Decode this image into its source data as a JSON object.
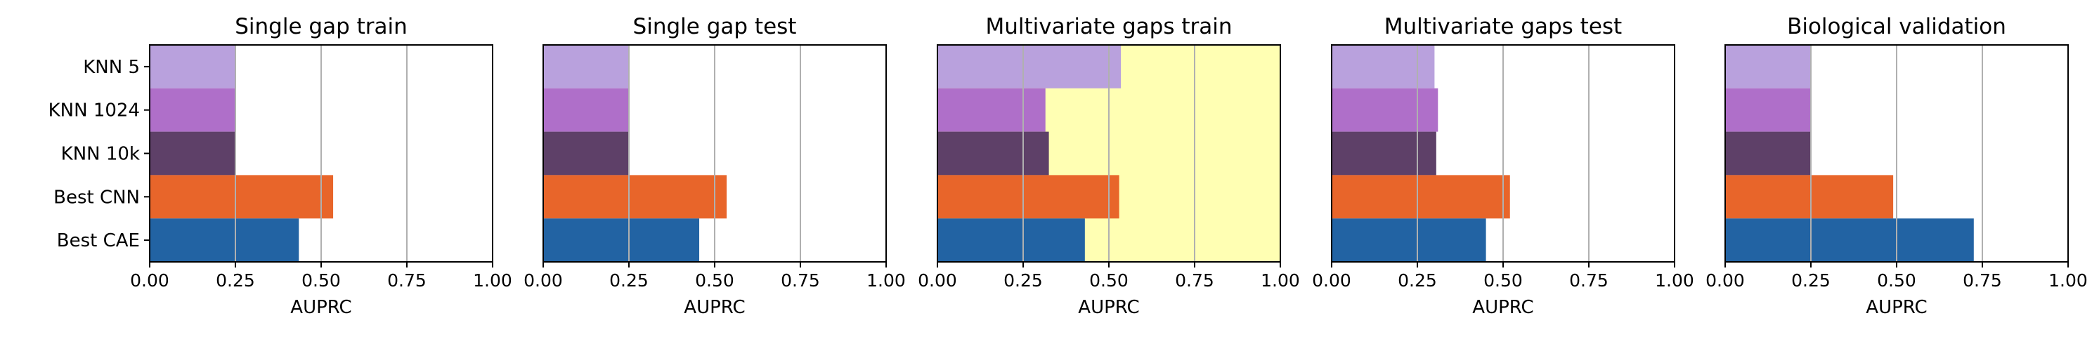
{
  "chart_data": {
    "type": "bar",
    "orientation": "horizontal",
    "categories": [
      "KNN 5",
      "KNN 1024",
      "KNN 10k",
      "Best CNN",
      "Best CAE"
    ],
    "category_colors": [
      "#b9a1dd",
      "#af6fc9",
      "#5e4068",
      "#e8652a",
      "#2263a3"
    ],
    "xlabel": "AUPRC",
    "xlim": [
      0,
      1
    ],
    "xticks": [
      "0.00",
      "0.25",
      "0.50",
      "0.75",
      "1.00"
    ],
    "grid": "vertical",
    "panels": [
      {
        "title": "Single gap train",
        "highlight": null,
        "values": [
          0.25,
          0.25,
          0.25,
          0.535,
          0.435
        ]
      },
      {
        "title": "Single gap test",
        "highlight": null,
        "values": [
          0.25,
          0.25,
          0.25,
          0.535,
          0.455
        ]
      },
      {
        "title": "Multivariate gaps train",
        "highlight": "#ffffb3",
        "values": [
          0.535,
          0.315,
          0.325,
          0.53,
          0.43
        ]
      },
      {
        "title": "Multivariate gaps test",
        "highlight": null,
        "values": [
          0.3,
          0.31,
          0.305,
          0.52,
          0.45
        ]
      },
      {
        "title": "Biological validation",
        "highlight": null,
        "values": [
          0.25,
          0.25,
          0.25,
          0.49,
          0.725
        ]
      }
    ]
  }
}
